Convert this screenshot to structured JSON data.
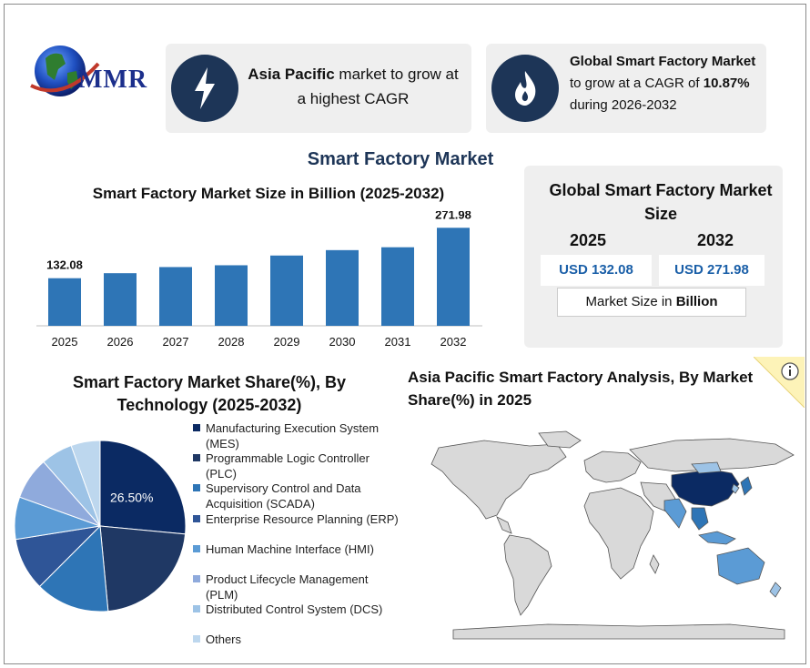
{
  "logo": {
    "text": "MMR"
  },
  "card1": {
    "bold": "Asia Pacific",
    "rest1": " market to grow at",
    "rest2": "a highest CAGR",
    "icon": "lightning-icon"
  },
  "card2": {
    "line1": "Global Smart Factory Market",
    "line2_pre": "to grow at a CAGR of ",
    "line2_bold": "10.87%",
    "line3": "during 2026-2032",
    "icon": "flame-icon"
  },
  "main_title": "Smart Factory Market",
  "summary": {
    "title": "Global Smart Factory Market Size",
    "year1": "2025",
    "year2": "2032",
    "value1": "USD 132.08",
    "value2": "USD 271.98",
    "note_pre": "Market Size in ",
    "note_bold": "Billion"
  },
  "map_title": "Asia Pacific Smart Factory Analysis, By Market Share(%) in 2025",
  "colors": {
    "dark_navy": "#1d3557",
    "bar_blue": "#2e75b6",
    "value_blue": "#1a5fa8",
    "panel": "#efefef"
  },
  "chart_data": [
    {
      "type": "bar",
      "title": "Smart Factory Market Size in Billion (2025-2032)",
      "categories": [
        "2025",
        "2026",
        "2027",
        "2028",
        "2029",
        "2030",
        "2031",
        "2032"
      ],
      "values": [
        132.08,
        146,
        163,
        168,
        195,
        210,
        218,
        271.98
      ],
      "data_labels": [
        "132.08",
        "",
        "",
        "",
        "",
        "",
        "",
        "271.98"
      ],
      "ylim": [
        0,
        300
      ],
      "grid": false,
      "color": "#2e75b6"
    },
    {
      "type": "pie",
      "title": "Smart Factory Market Share(%), By Technology (2025-2032)",
      "labels": [
        "Manufacturing Execution System (MES)",
        "Programmable Logic Controller (PLC)",
        "Supervisory Control and Data Acquisition (SCADA)",
        "Enterprise Resource Planning (ERP)",
        "Human Machine Interface (HMI)",
        "Product Lifecycle Management (PLM)",
        "Distributed Control System (DCS)",
        "Others"
      ],
      "values": [
        26.5,
        22,
        14,
        10,
        8,
        8,
        6,
        5.5
      ],
      "data_labels": [
        "26.50%",
        "",
        "",
        "",
        "",
        "",
        "",
        ""
      ],
      "colors": [
        "#0b2a63",
        "#1f3864",
        "#2e75b6",
        "#2f5597",
        "#5b9bd5",
        "#8faadc",
        "#9dc3e6",
        "#bdd7ee"
      ],
      "legend_position": "right"
    }
  ]
}
